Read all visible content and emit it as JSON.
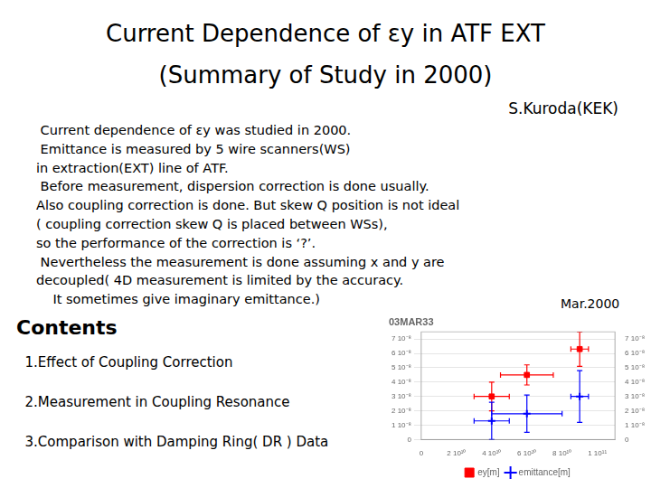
{
  "chart_data": {
    "type": "scatter",
    "title": "03MAR33",
    "annotations": {
      "heading": [
        "Current Dependence of εy in ATF EXT",
        "(Summary of Study in 2000)"
      ],
      "author": "S.Kuroda(KEK)",
      "body": [
        " Current dependence of εy was studied in 2000.",
        " Emittance is measured by 5 wire scanners(WS)",
        "in extraction(EXT) line of ATF.",
        " Before measurement, dispersion correction is done usually.",
        "Also coupling correction is done. But skew Q position is not ideal",
        "( coupling correction skew Q is placed between WSs),",
        "so the performance of the correction is ‘?’.",
        " Nevertheless the measurement is done assuming x and y are",
        "decoupled( 4D measurement is limited by the accuracy.",
        "    It sometimes give imaginary emittance.)"
      ],
      "note": "Mar.2000",
      "contents_title": "Contents",
      "contents": [
        "  1.Effect of Coupling Correction",
        "  2.Measurement in Coupling Resonance",
        "  3.Comparison with Damping Ring( DR ) Data"
      ]
    },
    "series": [
      {
        "name": "ey[m]",
        "color": "red",
        "marker": "square",
        "x": [
          40000000000.0,
          60000000000.0,
          90000000000.0
        ],
        "values": [
          3e-08,
          4.5e-08,
          6.3e-08
        ],
        "xerr": [
          10000000000.0,
          15000000000.0,
          5000000000.0
        ],
        "yerr": [
          1e-08,
          7e-09,
          1.2e-08
        ]
      },
      {
        "name": "emittance[m]",
        "color": "blue",
        "marker": "plus",
        "x": [
          40000000000.0,
          60000000000.0,
          90000000000.0
        ],
        "values": [
          1.3e-08,
          1.8e-08,
          3e-08
        ],
        "xerr": [
          10000000000.0,
          20000000000.0,
          5000000000.0
        ],
        "yerr": [
          1.3e-08,
          1.3e-08,
          1.8e-08
        ]
      }
    ],
    "xlim": [
      0,
      110000000000.0
    ],
    "xticks": [
      0,
      {
        "value": 20000000000.0,
        "label": "2 10¹⁰"
      },
      {
        "value": 40000000000.0,
        "label": "4 10¹⁰"
      },
      {
        "value": 60000000000.0,
        "label": "6 10¹⁰"
      },
      {
        "value": 80000000000.0,
        "label": "8 10¹⁰"
      },
      {
        "value": 100000000000.0,
        "label": "1 10¹¹"
      }
    ],
    "ylim": [
      0,
      7.5e-08
    ],
    "yticks": [
      0,
      {
        "value": 1e-08,
        "label": "1 10⁻⁸"
      },
      {
        "value": 2e-08,
        "label": "2 10⁻⁸"
      },
      {
        "value": 3e-08,
        "label": "3 10⁻⁸"
      },
      {
        "value": 4e-08,
        "label": "4 10⁻⁸"
      },
      {
        "value": 5e-08,
        "label": "5 10⁻⁸"
      },
      {
        "value": 6e-08,
        "label": "6 10⁻⁸"
      },
      {
        "value": 7e-08,
        "label": "7 10⁻⁸"
      }
    ],
    "y2lim": [
      0,
      7.5e-08
    ],
    "y2ticks": [
      0,
      {
        "value": 1e-08,
        "label": "1 10⁻⁸"
      },
      {
        "value": 2e-08,
        "label": "2 10⁻⁸"
      },
      {
        "value": 3e-08,
        "label": "3 10⁻⁸"
      },
      {
        "value": 4e-08,
        "label": "4 10⁻⁸"
      },
      {
        "value": 5e-08,
        "label": "5 10⁻⁸"
      },
      {
        "value": 6e-08,
        "label": "6 10⁻⁸"
      },
      {
        "value": 7e-08,
        "label": "7 10⁻⁸"
      }
    ],
    "grid": "y",
    "legend": "bottom"
  }
}
